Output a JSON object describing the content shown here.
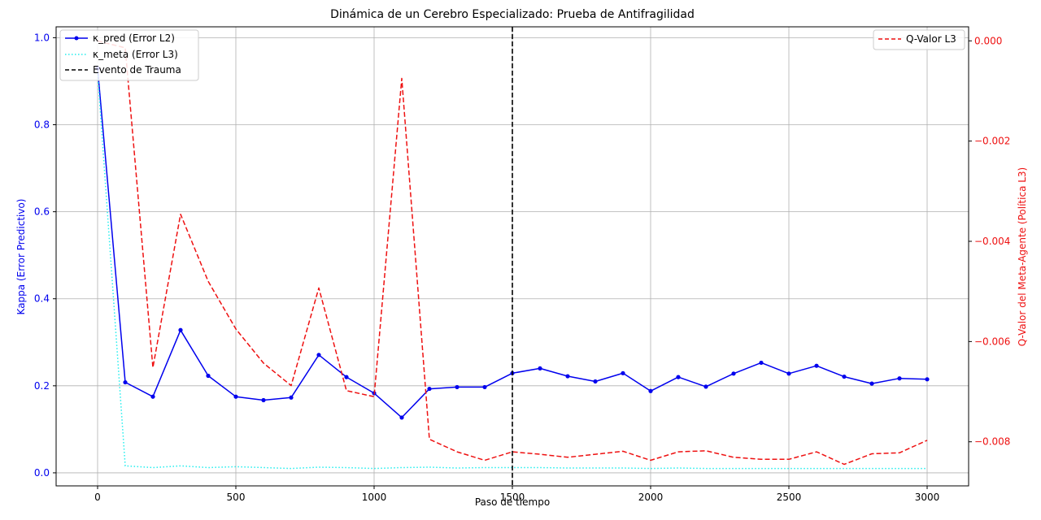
{
  "chart_data": {
    "type": "line",
    "title": "Dinámica de un Cerebro Especializado: Prueba de Antifragilidad",
    "xlabel": "Paso de tiempo",
    "ylabel_left": "Kappa (Error Predictivo)",
    "ylabel_right": "Q-Valor del Meta-Agente (Política L3)",
    "xlim": [
      -150,
      3150
    ],
    "ylim_left": [
      -0.03,
      1.025
    ],
    "ylim_right": [
      -0.00888,
      0.00028
    ],
    "x_ticks": [
      0,
      500,
      1000,
      1500,
      2000,
      2500,
      3000
    ],
    "y_ticks_left": [
      0.0,
      0.2,
      0.4,
      0.6,
      0.8,
      1.0
    ],
    "y_ticks_left_labels": [
      "0.0",
      "0.2",
      "0.4",
      "0.6",
      "0.8",
      "1.0"
    ],
    "y_ticks_right": [
      0.0,
      -0.002,
      -0.004,
      -0.006,
      -0.008
    ],
    "y_ticks_right_labels": [
      "0.000",
      "−0.002",
      "−0.004",
      "−0.006",
      "−0.008"
    ],
    "grid": true,
    "x": [
      0,
      100,
      200,
      300,
      400,
      500,
      600,
      700,
      800,
      900,
      1000,
      1100,
      1200,
      1300,
      1400,
      1500,
      1600,
      1700,
      1800,
      1900,
      2000,
      2100,
      2200,
      2300,
      2400,
      2500,
      2600,
      2700,
      2800,
      2900,
      3000
    ],
    "series": [
      {
        "name": "κ_pred (Error L2)",
        "axis": "left",
        "color": "#0000ee",
        "style": "solid-markers",
        "values": [
          0.93,
          0.208,
          0.175,
          0.328,
          0.223,
          0.175,
          0.167,
          0.173,
          0.271,
          0.22,
          0.183,
          0.127,
          0.193,
          0.197,
          0.197,
          0.229,
          0.24,
          0.222,
          0.21,
          0.229,
          0.188,
          0.22,
          0.198,
          0.228,
          0.253,
          0.228,
          0.246,
          0.221,
          0.205,
          0.217,
          0.215
        ]
      },
      {
        "name": "κ_meta (Error L3)",
        "axis": "left",
        "color": "#22eeee",
        "style": "dotted",
        "values": [
          0.92,
          0.016,
          0.012,
          0.016,
          0.012,
          0.014,
          0.012,
          0.01,
          0.013,
          0.012,
          0.01,
          0.012,
          0.013,
          0.011,
          0.012,
          0.012,
          0.012,
          0.011,
          0.011,
          0.011,
          0.01,
          0.011,
          0.01,
          0.01,
          0.01,
          0.01,
          0.01,
          0.01,
          0.01,
          0.01,
          0.01
        ]
      },
      {
        "name": "Q-Valor L3",
        "axis": "right",
        "color": "#ee1111",
        "style": "dashed",
        "values": [
          0.0,
          -0.00014,
          -0.00652,
          -0.00346,
          -0.0048,
          -0.00575,
          -0.00643,
          -0.00688,
          -0.00493,
          -0.00698,
          -0.0071,
          -0.00075,
          -0.00795,
          -0.0082,
          -0.00837,
          -0.0082,
          -0.00825,
          -0.00831,
          -0.00825,
          -0.00819,
          -0.00837,
          -0.0082,
          -0.00818,
          -0.00831,
          -0.00835,
          -0.00835,
          -0.0082,
          -0.00845,
          -0.00824,
          -0.00822,
          -0.00797
        ]
      }
    ],
    "vline": {
      "x": 1500,
      "name": "Evento de Trauma",
      "color": "#000000",
      "style": "dashed"
    },
    "legend_left_position": "upper-left",
    "legend_right_position": "upper-right",
    "colors": {
      "left_axis": "#0000ee",
      "right_axis": "#ee1111",
      "grid": "#b0b0b0"
    }
  }
}
